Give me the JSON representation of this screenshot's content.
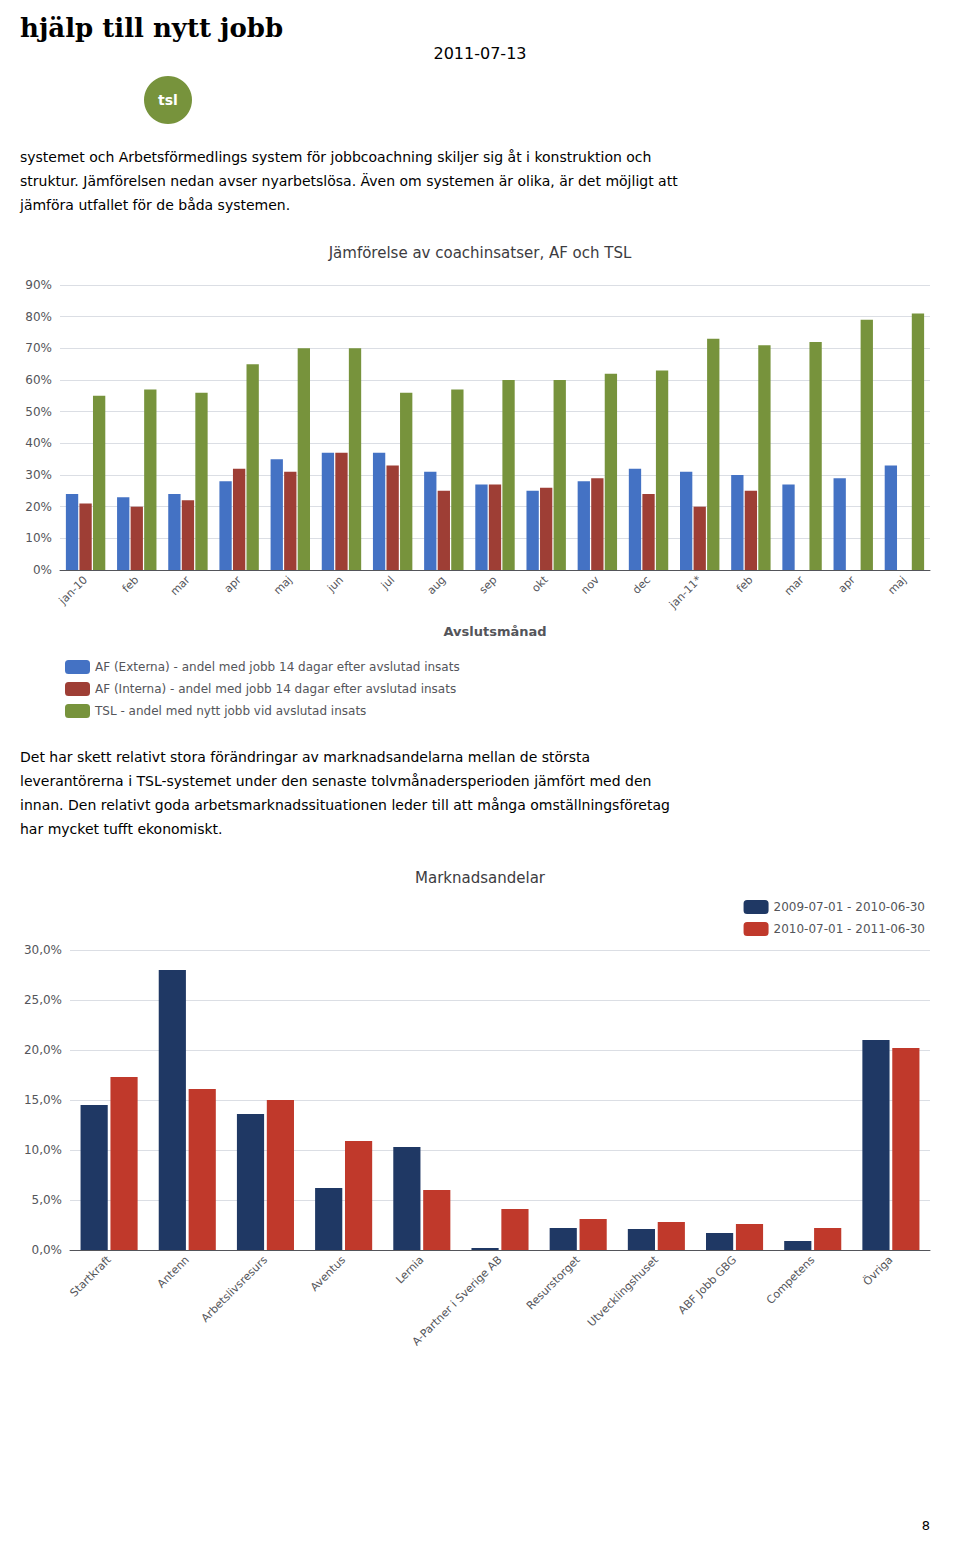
{
  "header": {
    "logo": "hjälp till nytt jobb",
    "badge": {
      "text": "tsl",
      "color": "#77933c"
    },
    "date": "2011-07-13"
  },
  "intro": [
    "systemet och Arbetsförmedlings system för jobbcoachning skiljer sig åt i konstruktion och",
    "struktur. Jämförelsen nedan avser nyarbetslösa. Även om systemen är olika, är det möjligt att",
    "jämföra utfallet för de båda systemen."
  ],
  "body": [
    "Det har skett relativt stora förändringar av marknadsandelarna mellan de största",
    "leverantörerna i TSL-systemet under den senaste tolvmånadersperioden jämfört med den",
    "innan. Den relativt goda arbetsmarknadssituationen leder till att många omställningsföretag",
    "har mycket tufft ekonomiskt."
  ],
  "page_number": "8",
  "chart_data": [
    {
      "type": "bar",
      "title": "Jämförelse av coachinsatser, AF och TSL",
      "xlabel": "Avslutsmånad",
      "categories": [
        "jan-10",
        "feb",
        "mar",
        "apr",
        "maj",
        "jun",
        "jul",
        "aug",
        "sep",
        "okt",
        "nov",
        "dec",
        "jan-11*",
        "feb",
        "mar",
        "apr",
        "maj"
      ],
      "series": [
        {
          "name": "AF (Externa) - andel med jobb 14 dagar efter avslutad insats",
          "color": "#4472c4",
          "values": [
            0.24,
            0.23,
            0.24,
            0.28,
            0.35,
            0.37,
            0.37,
            0.31,
            0.27,
            0.25,
            0.28,
            0.32,
            0.31,
            0.3,
            0.27,
            0.29,
            0.33
          ]
        },
        {
          "name": "AF (Interna) - andel med jobb 14 dagar efter avslutad insats",
          "color": "#9e3e35",
          "values": [
            0.21,
            0.2,
            0.22,
            0.32,
            0.31,
            0.37,
            0.33,
            0.25,
            0.27,
            0.26,
            0.29,
            0.24,
            0.2,
            0.25,
            0.0,
            0.0,
            0.0
          ]
        },
        {
          "name": "TSL - andel med nytt jobb vid avslutad insats",
          "color": "#77933c",
          "values": [
            0.55,
            0.57,
            0.56,
            0.65,
            0.7,
            0.7,
            0.56,
            0.57,
            0.6,
            0.6,
            0.62,
            0.63,
            0.73,
            0.71,
            0.72,
            0.79,
            0.81
          ]
        }
      ],
      "ylim": [
        0,
        0.9
      ],
      "yticks": [
        {
          "value": 0,
          "label": "0%"
        },
        {
          "value": 0.1,
          "label": "10%"
        },
        {
          "value": 0.2,
          "label": "20%"
        },
        {
          "value": 0.3,
          "label": "30%"
        },
        {
          "value": 0.4,
          "label": "40%"
        },
        {
          "value": 0.5,
          "label": "50%"
        },
        {
          "value": 0.6,
          "label": "60%"
        },
        {
          "value": 0.7,
          "label": "70%"
        },
        {
          "value": 0.8,
          "label": "80%"
        },
        {
          "value": 0.9,
          "label": "90%"
        }
      ],
      "grid": true,
      "legend": "bottom"
    },
    {
      "type": "bar",
      "title": "Marknadsandelar",
      "categories": [
        "Startkraft",
        "Antenn",
        "Arbetslivsresurs",
        "Aventus",
        "Lernia",
        "A-Partner i Sverige AB",
        "Resurstorget",
        "Utvecklingshuset",
        "ABF Jobb GBG",
        "Competens",
        "Övriga"
      ],
      "series": [
        {
          "name": "2009-07-01 - 2010-06-30",
          "color": "#1f3864",
          "values": [
            0.145,
            0.28,
            0.136,
            0.062,
            0.103,
            0.002,
            0.022,
            0.021,
            0.017,
            0.009,
            0.21
          ]
        },
        {
          "name": "2010-07-01 - 2011-06-30",
          "color": "#c0392b",
          "values": [
            0.173,
            0.161,
            0.15,
            0.109,
            0.06,
            0.041,
            0.031,
            0.028,
            0.026,
            0.022,
            0.202
          ]
        }
      ],
      "ylim": [
        0,
        0.3
      ],
      "yticks": [
        {
          "value": 0,
          "label": "0,0%"
        },
        {
          "value": 0.05,
          "label": "5,0%"
        },
        {
          "value": 0.1,
          "label": "10,0%"
        },
        {
          "value": 0.15,
          "label": "15,0%"
        },
        {
          "value": 0.2,
          "label": "20,0%"
        },
        {
          "value": 0.25,
          "label": "25,0%"
        },
        {
          "value": 0.3,
          "label": "30,0%"
        }
      ],
      "grid": true,
      "legend": "upper right"
    }
  ]
}
